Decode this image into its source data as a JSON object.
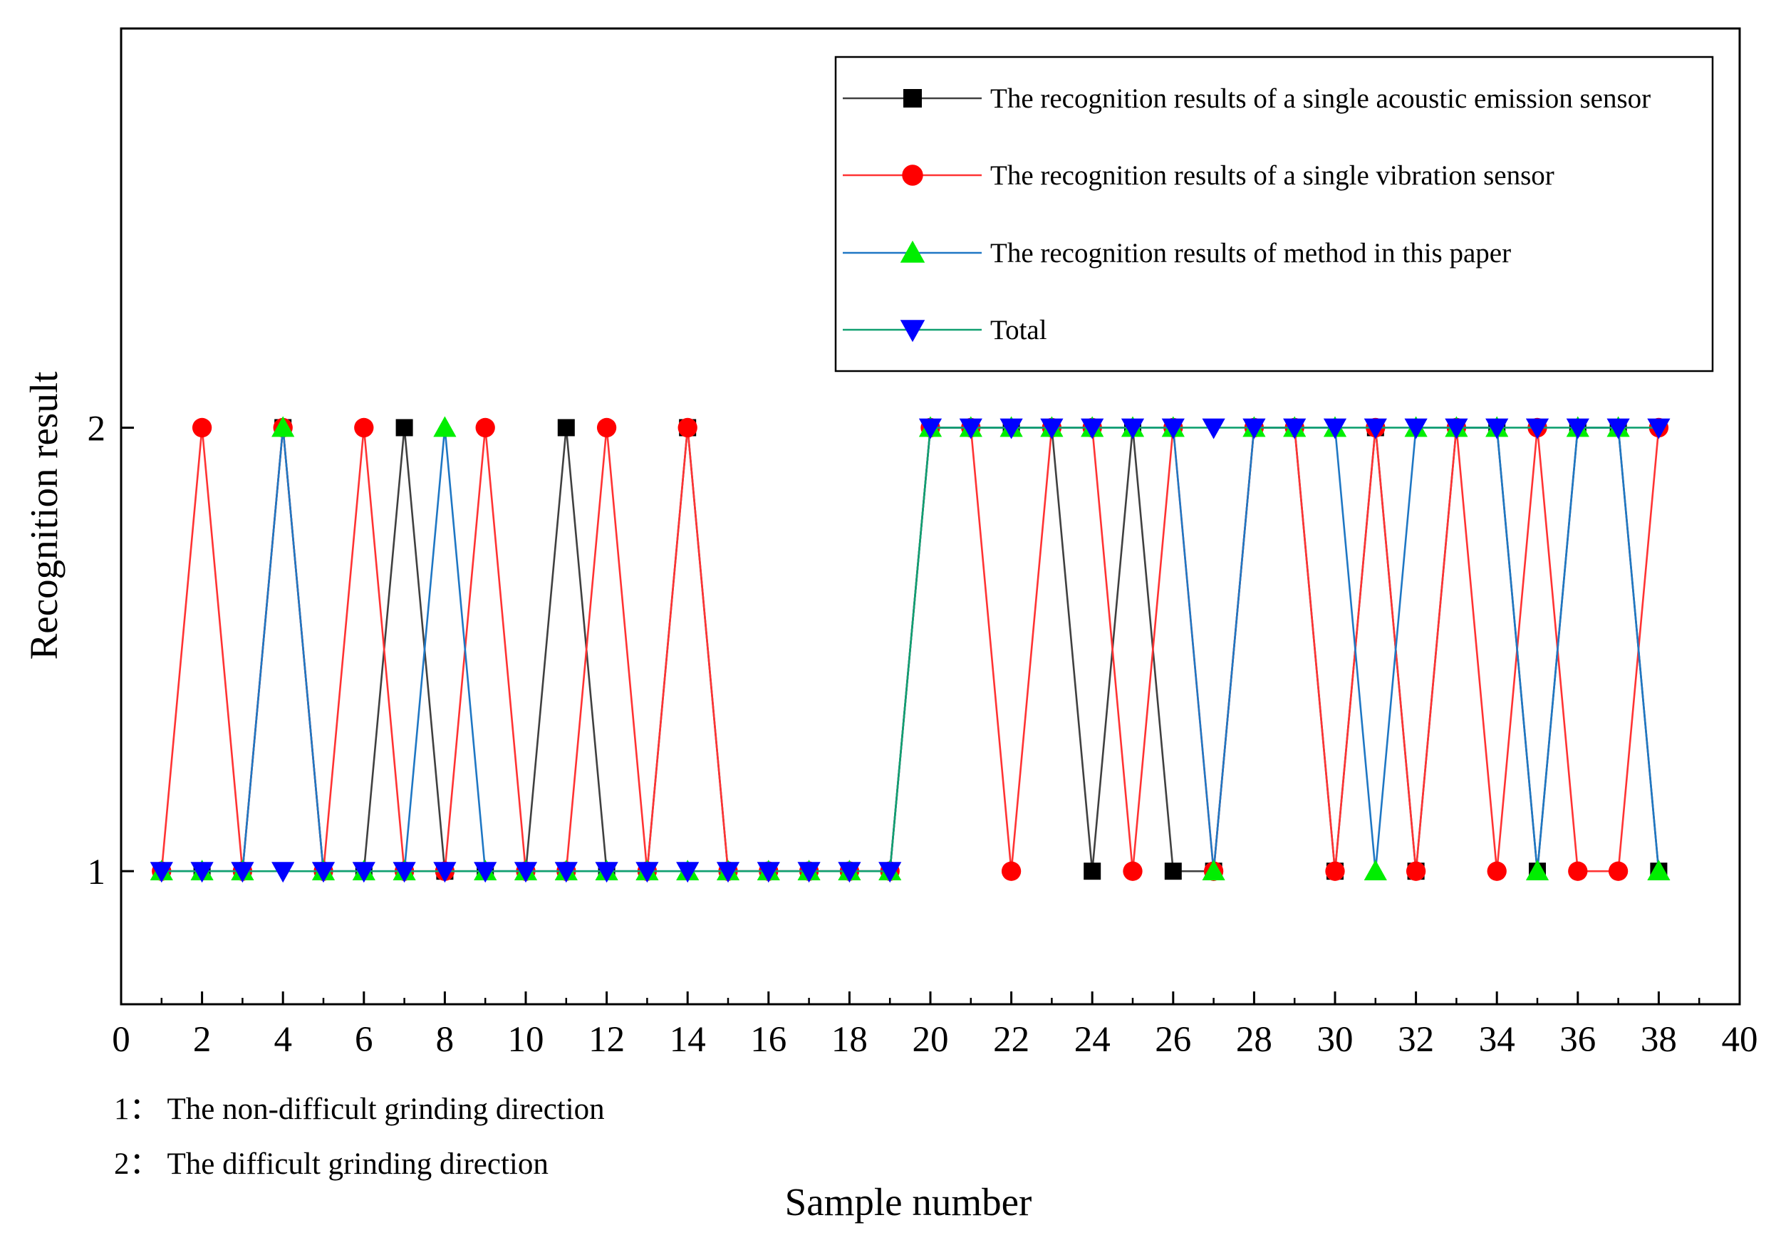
{
  "chart_data": {
    "type": "line",
    "title": "",
    "xlabel": "Sample number",
    "ylabel": "Recognition result",
    "xlim": [
      0,
      40
    ],
    "ylim": [
      0.7,
      2.9
    ],
    "x_ticks": [
      0,
      2,
      4,
      6,
      8,
      10,
      12,
      14,
      16,
      18,
      20,
      22,
      24,
      26,
      28,
      30,
      32,
      34,
      36,
      38,
      40
    ],
    "y_ticks": [
      1,
      2
    ],
    "grid": false,
    "legend_position": "top-right",
    "x": [
      1,
      2,
      3,
      4,
      5,
      6,
      7,
      8,
      9,
      10,
      11,
      12,
      13,
      14,
      15,
      16,
      17,
      18,
      19,
      20,
      21,
      22,
      23,
      24,
      25,
      26,
      27,
      28,
      29,
      30,
      31,
      32,
      33,
      34,
      35,
      36,
      37,
      38
    ],
    "series": [
      {
        "name": "The recognition results of a single acoustic emission sensor",
        "color": "#404040",
        "marker_color": "#000000",
        "marker": "square",
        "values": [
          1,
          1,
          1,
          2,
          1,
          1,
          2,
          1,
          1,
          1,
          2,
          1,
          1,
          2,
          1,
          1,
          1,
          1,
          1,
          2,
          2,
          2,
          2,
          1,
          2,
          1,
          1,
          2,
          2,
          1,
          2,
          1,
          2,
          2,
          1,
          2,
          2,
          1
        ]
      },
      {
        "name": "The recognition results of a single vibration sensor",
        "color": "#ff3333",
        "marker_color": "#ff0000",
        "marker": "circle",
        "values": [
          1,
          2,
          1,
          2,
          1,
          2,
          1,
          1,
          2,
          1,
          1,
          2,
          1,
          2,
          1,
          1,
          1,
          1,
          1,
          2,
          2,
          1,
          2,
          2,
          1,
          2,
          1,
          2,
          2,
          1,
          2,
          1,
          2,
          1,
          2,
          1,
          1,
          2
        ]
      },
      {
        "name": "The recognition results of method in this paper",
        "color": "#1f77c4",
        "marker_color": "#00ee00",
        "marker": "triangle-up",
        "values": [
          1,
          1,
          1,
          2,
          1,
          1,
          1,
          2,
          1,
          1,
          1,
          1,
          1,
          1,
          1,
          1,
          1,
          1,
          1,
          2,
          2,
          2,
          2,
          2,
          2,
          2,
          1,
          2,
          2,
          2,
          1,
          2,
          2,
          2,
          1,
          2,
          2,
          1
        ]
      },
      {
        "name": "Total",
        "color": "#11a070",
        "marker_color": "#0000ff",
        "marker": "triangle-down",
        "values": [
          1,
          1,
          1,
          1,
          1,
          1,
          1,
          1,
          1,
          1,
          1,
          1,
          1,
          1,
          1,
          1,
          1,
          1,
          1,
          2,
          2,
          2,
          2,
          2,
          2,
          2,
          2,
          2,
          2,
          2,
          2,
          2,
          2,
          2,
          2,
          2,
          2,
          2
        ]
      }
    ],
    "notes": [
      "1： The non-difficult grinding direction",
      "2： The difficult grinding direction"
    ]
  }
}
